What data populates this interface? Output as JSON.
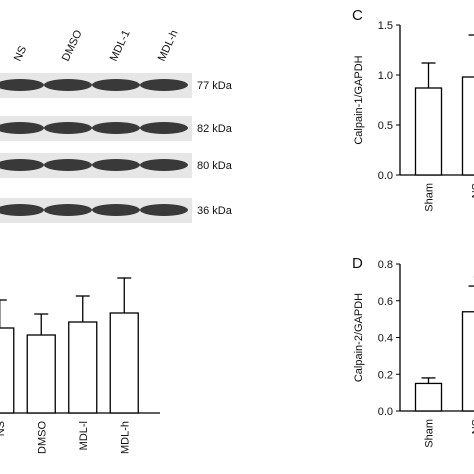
{
  "blot": {
    "lanes": [
      "NS",
      "DMSO",
      "MDL-1",
      "MDL-h"
    ],
    "bands": [
      "77 kDa",
      "82 kDa",
      "80 kDa",
      "36 kDa"
    ]
  },
  "chart_data": [
    {
      "type": "bar",
      "categories": [
        "NS",
        "DMSO",
        "MDL-l",
        "MDL-h"
      ],
      "values": [
        0.85,
        0.78,
        0.91,
        1.0
      ],
      "errors": [
        0.28,
        0.21,
        0.26,
        0.35
      ],
      "color": "#ffffff",
      "ylim": [
        0,
        1.4
      ]
    },
    {
      "type": "bar",
      "panel": "C",
      "ylabel": "Calpain-1/GAPDH",
      "categories": [
        "Sham",
        "NS"
      ],
      "values": [
        0.87,
        0.98
      ],
      "errors": [
        0.25,
        0.42
      ],
      "color": "#ffffff",
      "ylim": [
        0,
        1.5
      ],
      "yticks": [
        {
          "value": 0,
          "label": "0.0"
        },
        0.5,
        {
          "value": 1,
          "label": "1.0"
        },
        1.5
      ]
    },
    {
      "type": "bar",
      "panel": "D",
      "ylabel": "Calpain-2/GAPDH",
      "categories": [
        "Sham",
        "NS"
      ],
      "values": [
        0.15,
        0.54
      ],
      "errors": [
        0.03,
        0.14
      ],
      "color": "#ffffff",
      "ylim": [
        0,
        0.8
      ],
      "yticks": [
        {
          "value": 0,
          "label": "0.0"
        },
        0.2,
        0.4,
        0.6,
        0.8
      ],
      "annotation": "*"
    }
  ]
}
